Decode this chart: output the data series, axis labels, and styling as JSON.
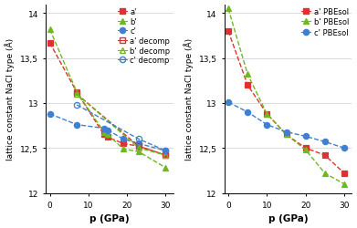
{
  "left": {
    "ylabel": "lattice constant NaCl type (Å)",
    "xlabel": "p (GPa)",
    "ylim": [
      12,
      14.1
    ],
    "xlim": [
      -1,
      32
    ],
    "ytick_vals": [
      12,
      12.5,
      13,
      13.5,
      14
    ],
    "ytick_labels": [
      "12",
      "12,5",
      "13",
      "13,5",
      "14"
    ],
    "xtick_vals": [
      0,
      10,
      20,
      30
    ],
    "series": {
      "a_comp": {
        "label": "a'",
        "color": "#e03030",
        "marker": "s",
        "filled": true,
        "x": [
          0,
          7,
          14,
          15,
          19,
          23,
          30
        ],
        "y": [
          13.67,
          13.12,
          12.65,
          12.62,
          12.55,
          12.52,
          12.42
        ]
      },
      "b_comp": {
        "label": "b'",
        "color": "#70b820",
        "marker": "^",
        "filled": true,
        "x": [
          0,
          7,
          14,
          15,
          19,
          23,
          30
        ],
        "y": [
          13.82,
          13.12,
          12.68,
          12.65,
          12.49,
          12.46,
          12.28
        ]
      },
      "c_comp": {
        "label": "c'",
        "color": "#4080d0",
        "marker": "o",
        "filled": true,
        "x": [
          0,
          7,
          14,
          15,
          19,
          23,
          30
        ],
        "y": [
          12.88,
          12.76,
          12.72,
          12.7,
          12.6,
          12.55,
          12.47
        ]
      },
      "a_decomp": {
        "label": "a' decomp",
        "color": "#e03030",
        "marker": "s",
        "filled": false,
        "x": [
          7,
          23,
          30
        ],
        "y": [
          13.1,
          12.52,
          12.42
        ]
      },
      "b_decomp": {
        "label": "b' decomp",
        "color": "#70b820",
        "marker": "^",
        "filled": false,
        "x": [
          7,
          23,
          30
        ],
        "y": [
          13.1,
          12.5,
          12.42
        ]
      },
      "c_decomp": {
        "label": "c' decomp",
        "color": "#4080d0",
        "marker": "o",
        "filled": false,
        "x": [
          7,
          23,
          30
        ],
        "y": [
          12.98,
          12.6,
          12.47
        ]
      }
    }
  },
  "right": {
    "ylabel": "lattice constant NaCl type (Å)",
    "xlabel": "p (GPa)",
    "ylim": [
      12,
      14.1
    ],
    "xlim": [
      -1,
      32
    ],
    "ytick_vals": [
      12,
      12.5,
      13,
      13.5,
      14
    ],
    "ytick_labels": [
      "12",
      "12,5",
      "13",
      "13,5",
      "14"
    ],
    "xtick_vals": [
      0,
      10,
      20,
      30
    ],
    "series": {
      "a_pbe": {
        "label": "a' PBEsol",
        "color": "#e03030",
        "marker": "s",
        "filled": true,
        "x": [
          0,
          5,
          10,
          15,
          20,
          25,
          30
        ],
        "y": [
          13.8,
          13.2,
          12.88,
          12.65,
          12.5,
          12.42,
          12.22
        ]
      },
      "b_pbe": {
        "label": "b' PBEsol",
        "color": "#70b820",
        "marker": "^",
        "filled": true,
        "x": [
          0,
          5,
          10,
          15,
          20,
          25,
          30
        ],
        "y": [
          14.05,
          13.32,
          12.88,
          12.65,
          12.48,
          12.22,
          12.1
        ]
      },
      "c_pbe": {
        "label": "c' PBEsol",
        "color": "#4080d0",
        "marker": "o",
        "filled": true,
        "x": [
          0,
          5,
          10,
          15,
          20,
          25,
          30
        ],
        "y": [
          13.01,
          12.9,
          12.76,
          12.68,
          12.63,
          12.57,
          12.5
        ]
      }
    }
  },
  "figure": {
    "bg_color": "#ffffff",
    "font_size": 6.5,
    "label_font_size": 7.5,
    "legend_font_size": 6,
    "marker_size": 4.5,
    "linewidth": 1.0
  }
}
